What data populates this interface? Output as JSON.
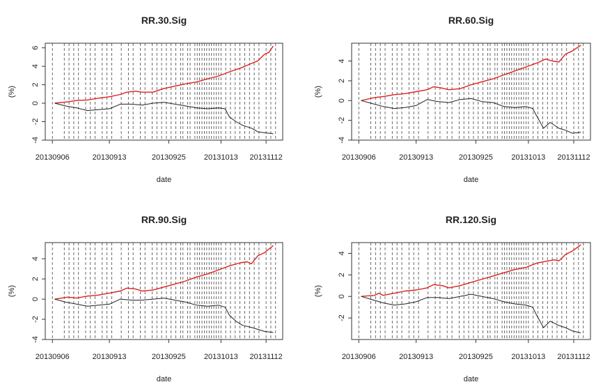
{
  "chart_data": [
    {
      "type": "line",
      "title": "RR.30.Sig",
      "xlabel": "date",
      "ylabel": "(%)",
      "ylim": [
        -4,
        6.5
      ],
      "yticks": [
        -4,
        -2,
        0,
        2,
        4,
        6
      ],
      "x_tick_labels": [
        "20130906",
        "20130913",
        "20130925",
        "20131013",
        "20131112"
      ],
      "series": [
        {
          "color": "#e02020",
          "values": [
            [
              0,
              0
            ],
            [
              0.06,
              0.15
            ],
            [
              0.1,
              0.3
            ],
            [
              0.15,
              0.35
            ],
            [
              0.2,
              0.55
            ],
            [
              0.25,
              0.7
            ],
            [
              0.3,
              0.95
            ],
            [
              0.33,
              1.2
            ],
            [
              0.37,
              1.3
            ],
            [
              0.4,
              1.2
            ],
            [
              0.45,
              1.2
            ],
            [
              0.5,
              1.6
            ],
            [
              0.55,
              1.85
            ],
            [
              0.6,
              2.1
            ],
            [
              0.65,
              2.3
            ],
            [
              0.7,
              2.65
            ],
            [
              0.75,
              2.95
            ],
            [
              0.8,
              3.4
            ],
            [
              0.85,
              3.8
            ],
            [
              0.9,
              4.3
            ],
            [
              0.93,
              4.6
            ],
            [
              0.96,
              5.3
            ],
            [
              0.98,
              5.5
            ],
            [
              1,
              6.2
            ]
          ]
        },
        {
          "color": "#222222",
          "values": [
            [
              0,
              0
            ],
            [
              0.05,
              -0.3
            ],
            [
              0.1,
              -0.5
            ],
            [
              0.15,
              -0.8
            ],
            [
              0.2,
              -0.7
            ],
            [
              0.25,
              -0.6
            ],
            [
              0.3,
              -0.1
            ],
            [
              0.35,
              -0.1
            ],
            [
              0.4,
              -0.2
            ],
            [
              0.45,
              0
            ],
            [
              0.5,
              0.1
            ],
            [
              0.55,
              -0.1
            ],
            [
              0.6,
              -0.3
            ],
            [
              0.65,
              -0.5
            ],
            [
              0.7,
              -0.6
            ],
            [
              0.75,
              -0.5
            ],
            [
              0.78,
              -0.6
            ],
            [
              0.8,
              -1.5
            ],
            [
              0.83,
              -2.0
            ],
            [
              0.86,
              -2.4
            ],
            [
              0.9,
              -2.7
            ],
            [
              0.93,
              -3.1
            ],
            [
              0.96,
              -3.2
            ],
            [
              1,
              -3.3
            ]
          ]
        }
      ]
    },
    {
      "type": "line",
      "title": "RR.60.Sig",
      "xlabel": "date",
      "ylabel": "(%)",
      "ylim": [
        -4,
        5.8
      ],
      "yticks": [
        -4,
        -2,
        0,
        2,
        4
      ],
      "x_tick_labels": [
        "20130906",
        "20130913",
        "20130925",
        "20131013",
        "20131112"
      ],
      "series": [
        {
          "color": "#e02020",
          "values": [
            [
              0,
              0
            ],
            [
              0.06,
              0.3
            ],
            [
              0.1,
              0.4
            ],
            [
              0.15,
              0.6
            ],
            [
              0.2,
              0.7
            ],
            [
              0.25,
              0.9
            ],
            [
              0.3,
              1.1
            ],
            [
              0.33,
              1.4
            ],
            [
              0.36,
              1.3
            ],
            [
              0.4,
              1.1
            ],
            [
              0.45,
              1.2
            ],
            [
              0.5,
              1.6
            ],
            [
              0.55,
              1.9
            ],
            [
              0.6,
              2.2
            ],
            [
              0.65,
              2.6
            ],
            [
              0.7,
              3.0
            ],
            [
              0.75,
              3.4
            ],
            [
              0.8,
              3.8
            ],
            [
              0.84,
              4.2
            ],
            [
              0.87,
              4.0
            ],
            [
              0.9,
              3.9
            ],
            [
              0.93,
              4.7
            ],
            [
              0.96,
              5.0
            ],
            [
              1,
              5.6
            ]
          ]
        },
        {
          "color": "#222222",
          "values": [
            [
              0,
              0
            ],
            [
              0.05,
              -0.3
            ],
            [
              0.1,
              -0.6
            ],
            [
              0.15,
              -0.8
            ],
            [
              0.2,
              -0.7
            ],
            [
              0.25,
              -0.5
            ],
            [
              0.3,
              0.1
            ],
            [
              0.35,
              -0.1
            ],
            [
              0.4,
              -0.2
            ],
            [
              0.45,
              0.1
            ],
            [
              0.5,
              0.2
            ],
            [
              0.55,
              -0.1
            ],
            [
              0.6,
              -0.2
            ],
            [
              0.65,
              -0.6
            ],
            [
              0.7,
              -0.7
            ],
            [
              0.75,
              -0.6
            ],
            [
              0.78,
              -0.8
            ],
            [
              0.8,
              -1.6
            ],
            [
              0.83,
              -2.8
            ],
            [
              0.86,
              -2.2
            ],
            [
              0.9,
              -2.8
            ],
            [
              0.93,
              -3.0
            ],
            [
              0.96,
              -3.3
            ],
            [
              1,
              -3.2
            ]
          ]
        }
      ]
    },
    {
      "type": "line",
      "title": "RR.90.Sig",
      "xlabel": "date",
      "ylabel": "(%)",
      "ylim": [
        -4,
        5.6
      ],
      "yticks": [
        -4,
        -2,
        0,
        2,
        4
      ],
      "x_tick_labels": [
        "20130906",
        "20130913",
        "20130925",
        "20131013",
        "20131112"
      ],
      "series": [
        {
          "color": "#e02020",
          "values": [
            [
              0,
              0
            ],
            [
              0.06,
              0.2
            ],
            [
              0.1,
              0.1
            ],
            [
              0.15,
              0.3
            ],
            [
              0.2,
              0.4
            ],
            [
              0.25,
              0.6
            ],
            [
              0.3,
              0.8
            ],
            [
              0.33,
              1.1
            ],
            [
              0.37,
              1.0
            ],
            [
              0.4,
              0.8
            ],
            [
              0.45,
              0.9
            ],
            [
              0.5,
              1.2
            ],
            [
              0.55,
              1.5
            ],
            [
              0.6,
              1.8
            ],
            [
              0.65,
              2.2
            ],
            [
              0.7,
              2.5
            ],
            [
              0.75,
              2.9
            ],
            [
              0.8,
              3.3
            ],
            [
              0.85,
              3.6
            ],
            [
              0.88,
              3.7
            ],
            [
              0.9,
              3.5
            ],
            [
              0.93,
              4.3
            ],
            [
              0.96,
              4.6
            ],
            [
              1,
              5.3
            ]
          ]
        },
        {
          "color": "#222222",
          "values": [
            [
              0,
              0
            ],
            [
              0.05,
              -0.3
            ],
            [
              0.1,
              -0.5
            ],
            [
              0.15,
              -0.7
            ],
            [
              0.2,
              -0.6
            ],
            [
              0.25,
              -0.5
            ],
            [
              0.3,
              0
            ],
            [
              0.35,
              -0.1
            ],
            [
              0.4,
              -0.1
            ],
            [
              0.45,
              0
            ],
            [
              0.5,
              0.1
            ],
            [
              0.55,
              -0.1
            ],
            [
              0.6,
              -0.3
            ],
            [
              0.65,
              -0.6
            ],
            [
              0.7,
              -0.7
            ],
            [
              0.75,
              -0.6
            ],
            [
              0.78,
              -0.8
            ],
            [
              0.8,
              -1.6
            ],
            [
              0.83,
              -2.2
            ],
            [
              0.86,
              -2.6
            ],
            [
              0.9,
              -2.8
            ],
            [
              0.93,
              -3.0
            ],
            [
              0.96,
              -3.2
            ],
            [
              1,
              -3.3
            ]
          ]
        }
      ]
    },
    {
      "type": "line",
      "title": "RR.120.Sig",
      "xlabel": "date",
      "ylabel": "(%)",
      "ylim": [
        -4,
        5.0
      ],
      "yticks": [
        -2,
        0,
        2,
        4
      ],
      "x_tick_labels": [
        "20130906",
        "20130913",
        "20130925",
        "20131013",
        "20131112"
      ],
      "series": [
        {
          "color": "#e02020",
          "values": [
            [
              0,
              0
            ],
            [
              0.06,
              0.1
            ],
            [
              0.08,
              0.3
            ],
            [
              0.1,
              0.1
            ],
            [
              0.15,
              0.3
            ],
            [
              0.2,
              0.5
            ],
            [
              0.25,
              0.6
            ],
            [
              0.3,
              0.8
            ],
            [
              0.33,
              1.1
            ],
            [
              0.37,
              1.0
            ],
            [
              0.4,
              0.8
            ],
            [
              0.45,
              1.0
            ],
            [
              0.5,
              1.3
            ],
            [
              0.55,
              1.6
            ],
            [
              0.6,
              1.9
            ],
            [
              0.65,
              2.2
            ],
            [
              0.7,
              2.5
            ],
            [
              0.75,
              2.7
            ],
            [
              0.8,
              3.1
            ],
            [
              0.85,
              3.3
            ],
            [
              0.88,
              3.4
            ],
            [
              0.9,
              3.3
            ],
            [
              0.93,
              3.9
            ],
            [
              0.96,
              4.2
            ],
            [
              1,
              4.8
            ]
          ]
        },
        {
          "color": "#222222",
          "values": [
            [
              0,
              0
            ],
            [
              0.05,
              -0.3
            ],
            [
              0.1,
              -0.6
            ],
            [
              0.15,
              -0.8
            ],
            [
              0.2,
              -0.7
            ],
            [
              0.25,
              -0.5
            ],
            [
              0.3,
              -0.1
            ],
            [
              0.35,
              -0.1
            ],
            [
              0.4,
              -0.2
            ],
            [
              0.45,
              0
            ],
            [
              0.5,
              0.2
            ],
            [
              0.55,
              0
            ],
            [
              0.6,
              -0.2
            ],
            [
              0.65,
              -0.5
            ],
            [
              0.7,
              -0.7
            ],
            [
              0.75,
              -0.8
            ],
            [
              0.78,
              -1.0
            ],
            [
              0.8,
              -1.8
            ],
            [
              0.83,
              -2.9
            ],
            [
              0.86,
              -2.3
            ],
            [
              0.9,
              -2.7
            ],
            [
              0.93,
              -2.9
            ],
            [
              0.96,
              -3.2
            ],
            [
              1,
              -3.4
            ]
          ]
        }
      ]
    }
  ]
}
